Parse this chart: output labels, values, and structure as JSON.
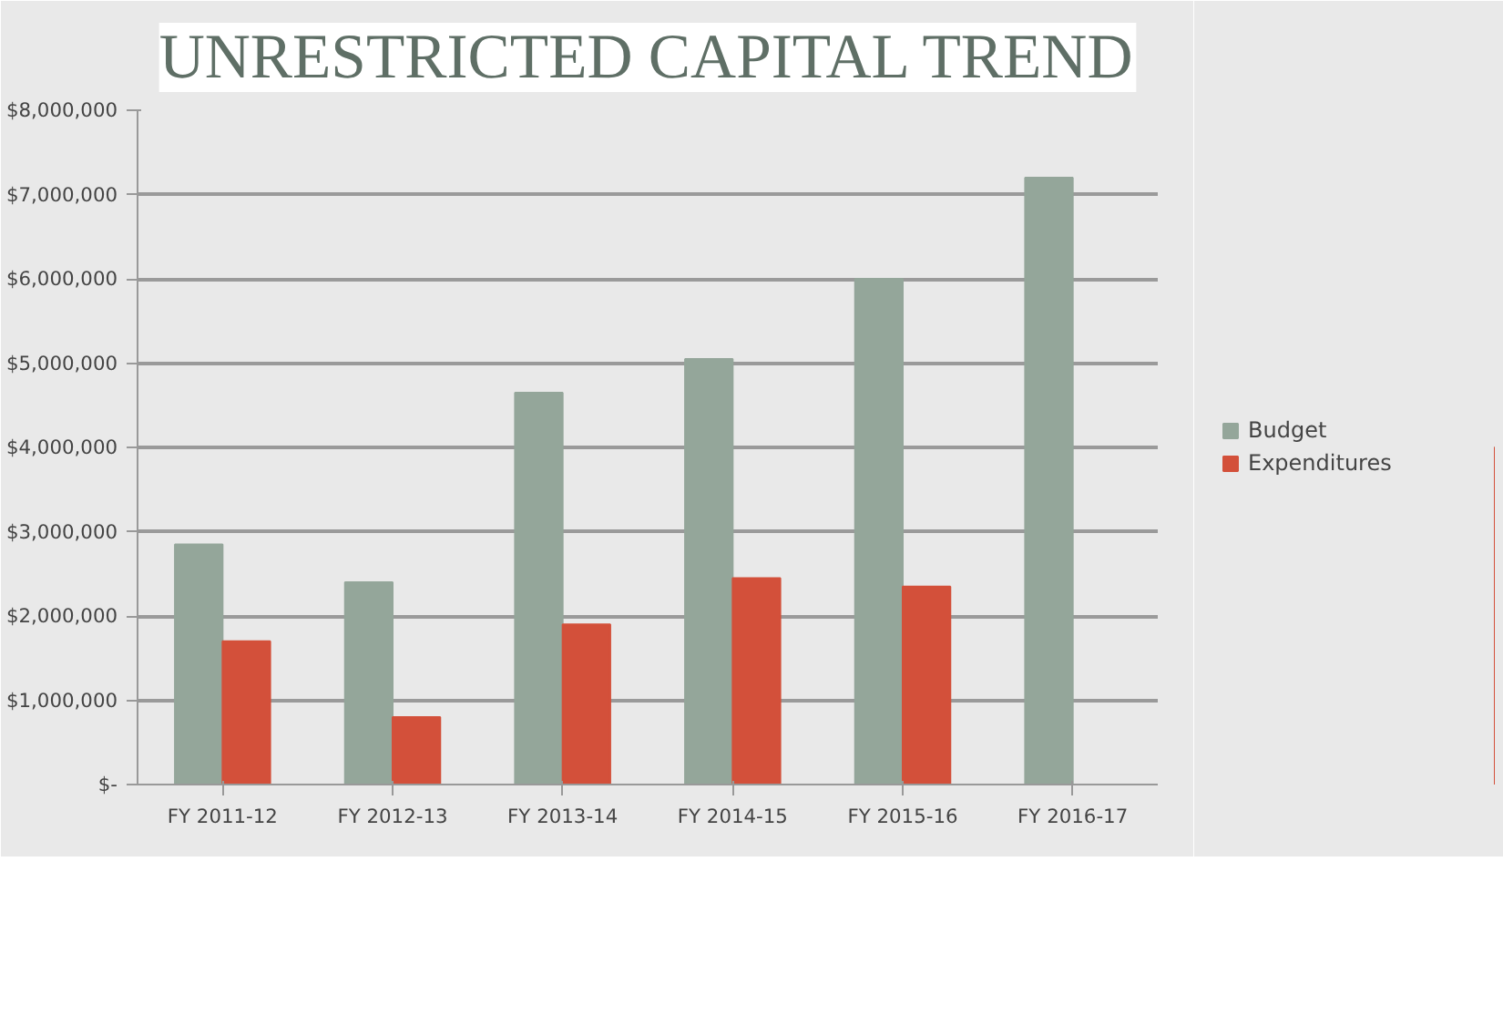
{
  "chart_data": {
    "type": "bar",
    "title": "UNRESTRICTED CAPITAL TREND",
    "categories": [
      "FY 2011-12",
      "FY 2012-13",
      "FY 2013-14",
      "FY 2014-15",
      "FY 2015-16",
      "FY 2016-17"
    ],
    "series": [
      {
        "name": "Budget",
        "color": "#94a69a",
        "values": [
          2850000,
          2400000,
          4650000,
          5050000,
          6000000,
          7200000
        ]
      },
      {
        "name": "Expenditures",
        "color": "#d3503a",
        "values": [
          1700000,
          800000,
          1900000,
          2450000,
          2350000,
          0
        ]
      }
    ],
    "ylim": [
      0,
      8000000
    ],
    "yticks": [
      {
        "value": 0,
        "label": "$-"
      },
      {
        "value": 1000000,
        "label": "$1,000,000"
      },
      {
        "value": 2000000,
        "label": "$2,000,000"
      },
      {
        "value": 3000000,
        "label": "$3,000,000"
      },
      {
        "value": 4000000,
        "label": "$4,000,000"
      },
      {
        "value": 5000000,
        "label": "$5,000,000"
      },
      {
        "value": 6000000,
        "label": "$6,000,000"
      },
      {
        "value": 7000000,
        "label": "$7,000,000"
      },
      {
        "value": 8000000,
        "label": "$8,000,000"
      }
    ],
    "grid": "y",
    "legend": "right"
  }
}
